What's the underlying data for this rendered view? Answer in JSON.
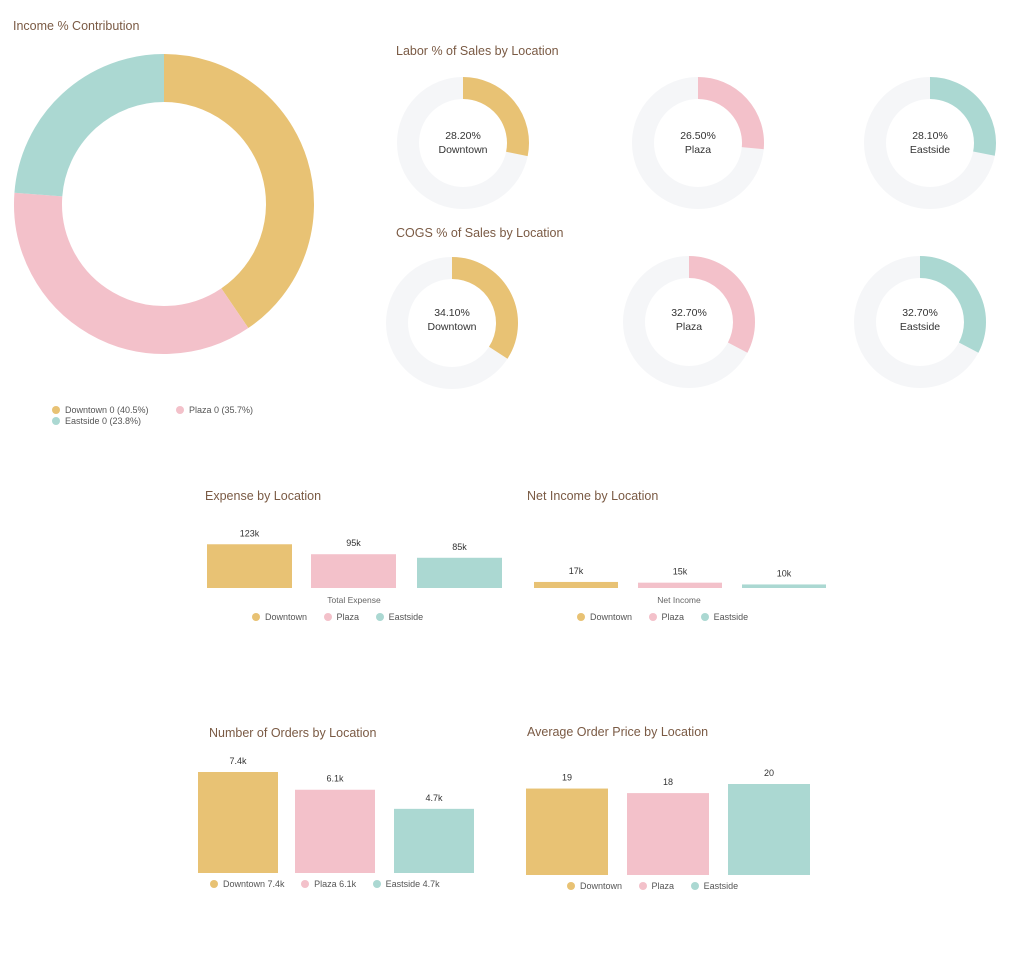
{
  "colors": {
    "downtown": "#e8c274",
    "plaza": "#f3c1ca",
    "eastside": "#abd8d2",
    "track": "#f5f6f8"
  },
  "chart_data": [
    {
      "id": "income-contribution",
      "type": "pie",
      "title": "Income % Contribution",
      "slices": [
        {
          "name": "Downtown",
          "value": 40.5,
          "legend": "Downtown 0 (40.5%)",
          "color": "#e8c274"
        },
        {
          "name": "Plaza",
          "value": 35.7,
          "legend": "Plaza 0 (35.7%)",
          "color": "#f3c1ca"
        },
        {
          "name": "Eastside",
          "value": 23.8,
          "legend": "Eastside 0 (23.8%)",
          "color": "#abd8d2"
        }
      ]
    },
    {
      "id": "labor",
      "type": "pie",
      "title": "Labor % of Sales by Location",
      "gauges": [
        {
          "name": "Downtown",
          "value": 28.2,
          "label": "28.20%",
          "color": "#e8c274"
        },
        {
          "name": "Plaza",
          "value": 26.5,
          "label": "26.50%",
          "color": "#f3c1ca"
        },
        {
          "name": "Eastside",
          "value": 28.1,
          "label": "28.10%",
          "color": "#abd8d2"
        }
      ]
    },
    {
      "id": "cogs",
      "type": "pie",
      "title": "COGS % of Sales by Location",
      "gauges": [
        {
          "name": "Downtown",
          "value": 34.1,
          "label": "34.10%",
          "color": "#e8c274"
        },
        {
          "name": "Plaza",
          "value": 32.7,
          "label": "32.70%",
          "color": "#f3c1ca"
        },
        {
          "name": "Eastside",
          "value": 32.7,
          "label": "32.70%",
          "color": "#abd8d2"
        }
      ]
    },
    {
      "id": "expense",
      "type": "bar",
      "title": "Expense by Location",
      "category": "Total Expense",
      "series": [
        {
          "name": "Downtown",
          "value": 123,
          "label": "123k",
          "color": "#e8c274"
        },
        {
          "name": "Plaza",
          "value": 95,
          "label": "95k",
          "color": "#f3c1ca"
        },
        {
          "name": "Eastside",
          "value": 85,
          "label": "85k",
          "color": "#abd8d2"
        }
      ],
      "ymax": 135
    },
    {
      "id": "netincome",
      "type": "bar",
      "title": "Net Income by Location",
      "category": "Net Income",
      "series": [
        {
          "name": "Downtown",
          "value": 17,
          "label": "17k",
          "color": "#e8c274"
        },
        {
          "name": "Plaza",
          "value": 15,
          "label": "15k",
          "color": "#f3c1ca"
        },
        {
          "name": "Eastside",
          "value": 10,
          "label": "10k",
          "color": "#abd8d2"
        }
      ],
      "ymax": 135
    },
    {
      "id": "orders",
      "type": "bar",
      "title": "Number of Orders by Location",
      "series": [
        {
          "name": "Downtown",
          "value": 7.4,
          "label": "7.4k",
          "legend": "Downtown 7.4k",
          "color": "#e8c274"
        },
        {
          "name": "Plaza",
          "value": 6.1,
          "label": "6.1k",
          "legend": "Plaza 6.1k",
          "color": "#f3c1ca"
        },
        {
          "name": "Eastside",
          "value": 4.7,
          "label": "4.7k",
          "legend": "Eastside 4.7k",
          "color": "#abd8d2"
        }
      ],
      "ymax": 7.4
    },
    {
      "id": "avgprice",
      "type": "bar",
      "title": "Average Order Price by Location",
      "series": [
        {
          "name": "Downtown",
          "value": 19,
          "label": "19",
          "legend": "Downtown",
          "color": "#e8c274"
        },
        {
          "name": "Plaza",
          "value": 18,
          "label": "18",
          "legend": "Plaza",
          "color": "#f3c1ca"
        },
        {
          "name": "Eastside",
          "value": 20,
          "label": "20",
          "legend": "Eastside",
          "color": "#abd8d2"
        }
      ],
      "ymax": 20
    }
  ]
}
